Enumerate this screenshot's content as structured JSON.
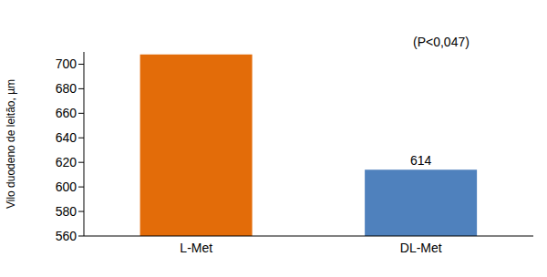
{
  "chart_data": {
    "type": "bar",
    "categories": [
      "L-Met",
      "DL-Met"
    ],
    "values": [
      708,
      614
    ],
    "value_labels": [
      null,
      "614"
    ],
    "data_labels": true,
    "colors": [
      "#e36c09",
      "#4f81bd"
    ],
    "y_label": "Vilo duodeno de leitão, µm",
    "annotation": "(P<0,047)",
    "ylim": [
      560,
      710
    ],
    "yticks": [
      560,
      580,
      600,
      620,
      640,
      660,
      680,
      700
    ],
    "grid": false
  }
}
